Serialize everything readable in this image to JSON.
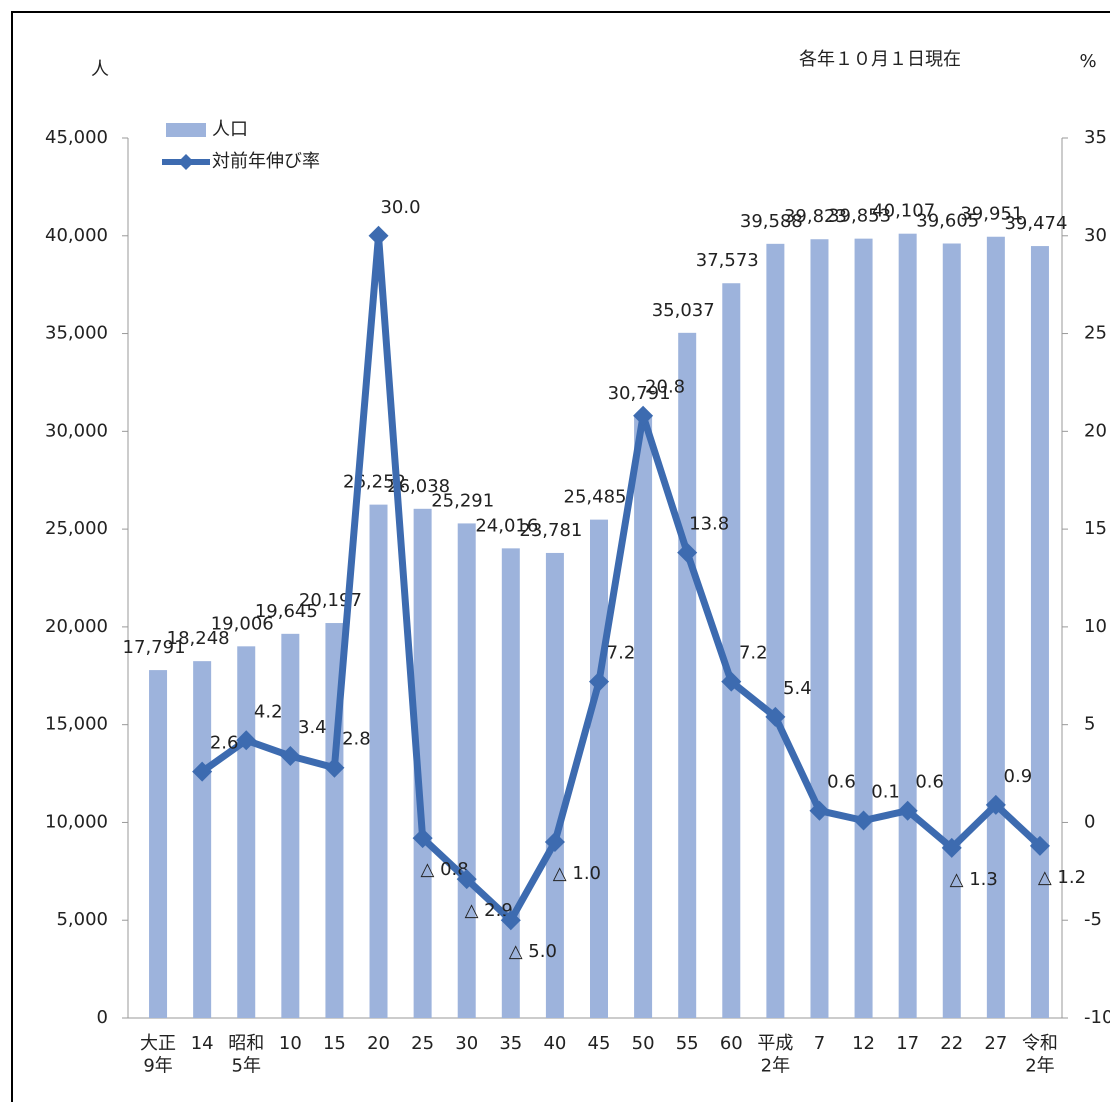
{
  "chart_data": {
    "type": "bar_line",
    "note": "各年１０月１日現在",
    "y_unit": "人",
    "y2_unit": "%",
    "categories": [
      "大正\n9年",
      "14",
      "昭和\n5年",
      "10",
      "15",
      "20",
      "25",
      "30",
      "35",
      "40",
      "45",
      "50",
      "55",
      "60",
      "平成\n2年",
      "7",
      "12",
      "17",
      "22",
      "27",
      "令和\n2年"
    ],
    "series": [
      {
        "name": "人口",
        "type": "bar",
        "color": "#9db3dc",
        "values": [
          17791,
          18248,
          19006,
          19645,
          20197,
          26252,
          26038,
          25291,
          24016,
          23781,
          25485,
          30791,
          35037,
          37573,
          39588,
          39823,
          39853,
          40107,
          39605,
          39951,
          39474
        ],
        "value_labels": [
          "17,791",
          "18,248",
          "19,006",
          "19,645",
          "20,197",
          "26,252",
          "26,038",
          "25,291",
          "24,016",
          "23,781",
          "25,485",
          "30,791",
          "35,037",
          "37,573",
          "39,588",
          "39,823",
          "39,853",
          "40,107",
          "39,605",
          "39,951",
          "39,474"
        ]
      },
      {
        "name": "対前年伸び率",
        "type": "line",
        "axis": "y2",
        "color": "#3d6bb0",
        "values": [
          null,
          2.6,
          4.2,
          3.4,
          2.8,
          30.0,
          -0.8,
          -2.9,
          -5.0,
          -1.0,
          7.2,
          20.8,
          13.8,
          7.2,
          5.4,
          0.6,
          0.1,
          0.6,
          -1.3,
          0.9,
          -1.2
        ],
        "value_labels": [
          null,
          "2.6",
          "4.2",
          "3.4",
          "2.8",
          "30.0",
          "△ 0.8",
          "△ 2.9",
          "△ 5.0",
          "△ 1.0",
          "7.2",
          "20.8",
          "13.8",
          "7.2",
          "5.4",
          "0.6",
          "0.1",
          "0.6",
          "△ 1.3",
          "0.9",
          "△ 1.2"
        ]
      }
    ],
    "ylim": [
      0,
      45000
    ],
    "yticks": [
      0,
      {
        "value": 5000,
        "label": "5,000"
      },
      {
        "value": 10000,
        "label": "10,000"
      },
      {
        "value": 15000,
        "label": "15,000"
      },
      {
        "value": 20000,
        "label": "20,000"
      },
      {
        "value": 25000,
        "label": "25,000"
      },
      {
        "value": 30000,
        "label": "30,000"
      },
      {
        "value": 35000,
        "label": "35,000"
      },
      {
        "value": 40000,
        "label": "40,000"
      },
      {
        "value": 45000,
        "label": "45,000"
      }
    ],
    "y2lim": [
      -10,
      35
    ],
    "y2ticks": [
      -10,
      -5,
      0,
      5,
      10,
      15,
      20,
      25,
      30,
      35
    ],
    "legend": "upper left"
  }
}
